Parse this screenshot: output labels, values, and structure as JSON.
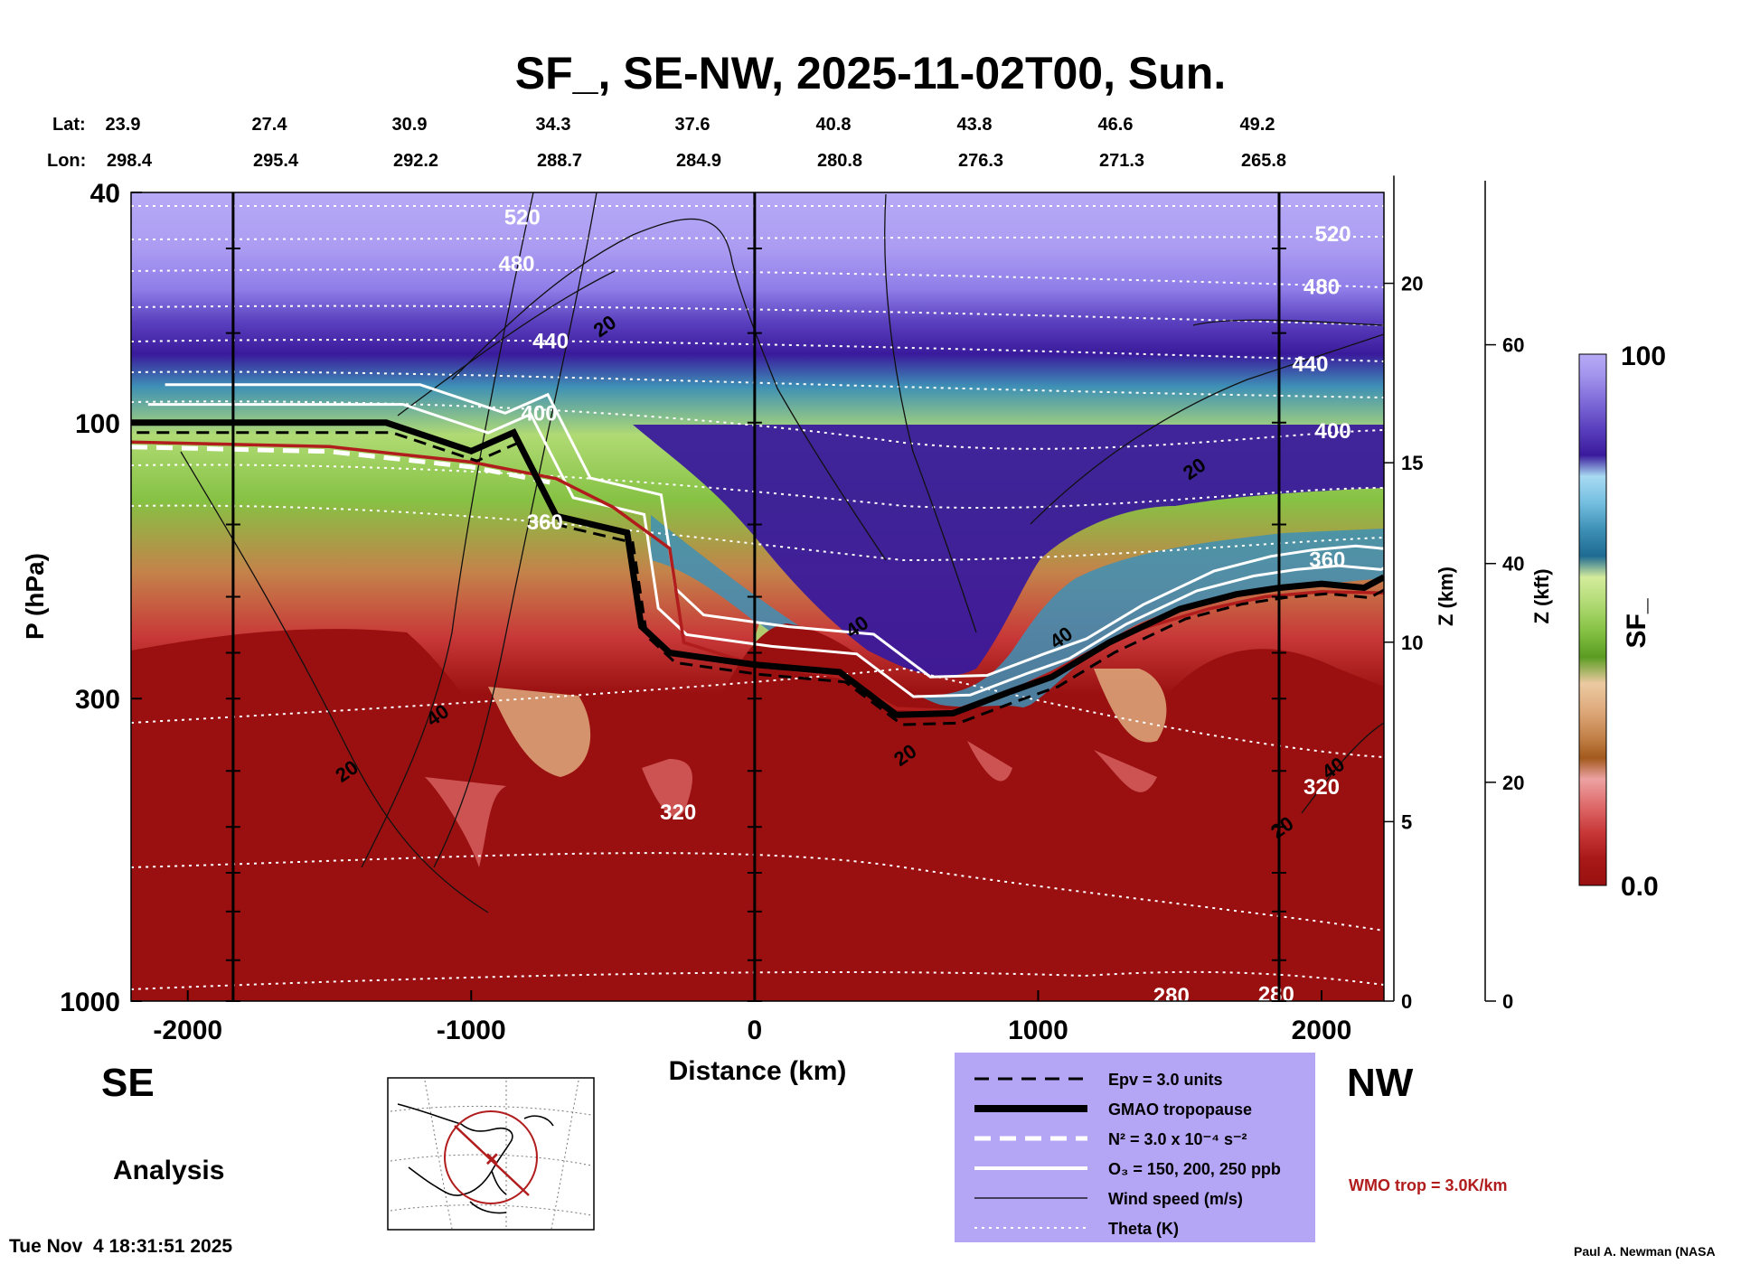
{
  "title": "SF_, SE-NW, 2025-11-02T00, Sun.",
  "lat_label": "Lat:",
  "lon_label": "Lon:",
  "lat_values": [
    "23.9",
    "27.4",
    "30.9",
    "34.3",
    "37.6",
    "40.8",
    "43.8",
    "46.6",
    "49.2"
  ],
  "lon_values": [
    "298.4",
    "295.4",
    "292.2",
    "288.7",
    "284.9",
    "280.8",
    "276.3",
    "271.3",
    "265.8"
  ],
  "left_direction": "SE",
  "right_direction": "NW",
  "analysis_label": "Analysis",
  "timestamp": "Tue Nov  4 18:31:51 2025",
  "credit": "Paul A. Newman (NASA",
  "wmo_note": "WMO trop = 3.0K/km",
  "legend": [
    {
      "label": "Epv = 3.0 units",
      "style": "dashed-black"
    },
    {
      "label": "GMAO tropopause",
      "style": "thick-black"
    },
    {
      "label": "N² = 3.0 x 10⁻⁴ s⁻²",
      "style": "dashed-white"
    },
    {
      "label": "O₃ = 150, 200, 250 ppb",
      "style": "solid-white"
    },
    {
      "label": "Wind speed (m/s)",
      "style": "thin-black"
    },
    {
      "label": "Theta (K)",
      "style": "dotted-white"
    }
  ],
  "colors": {
    "legend_bg": "#b4a6f4",
    "wmo": "#b11d1d",
    "lowSF": "#9a1010",
    "highSF": "#b7aaf6"
  },
  "chart_data": {
    "type": "heatmap",
    "title": "SF_, SE-NW, 2025-11-02T00, Sun.",
    "xlabel": "Distance (km)",
    "ylabel": "P (hPa)",
    "y2label": "Z (km)",
    "y3label": "Z (kft)",
    "colorbar_label": "SF_",
    "x_range": [
      -2200,
      2220
    ],
    "x_ticks": [
      -2000,
      -1000,
      0,
      1000,
      2000
    ],
    "p_range": [
      1000,
      40
    ],
    "p_ticks": [
      40,
      100,
      300,
      1000
    ],
    "z_km_ticks": [
      0,
      5,
      10,
      15,
      20
    ],
    "z_kft_ticks": [
      0,
      20,
      40,
      60
    ],
    "colorbar_range": [
      0.0,
      100
    ],
    "colorbar_tick_labels": [
      "0.0",
      "100"
    ],
    "colorbar_colors": [
      "#9a1010",
      "#a81818",
      "#c83838",
      "#de6a6a",
      "#eda2a2",
      "#a25a1c",
      "#c4824a",
      "#deaa7c",
      "#eccaa2",
      "#5a9c22",
      "#86c244",
      "#b0da74",
      "#d4ec9c",
      "#1e6a92",
      "#3e90b6",
      "#74bee0",
      "#a8daf2",
      "#3a1a9c",
      "#5a40be",
      "#7e6ad8",
      "#a294ec",
      "#b7aaf6"
    ],
    "theta_labels": [
      {
        "value": "520",
        "x_km": -820,
        "p": 44
      },
      {
        "value": "480",
        "x_km": -840,
        "p": 53
      },
      {
        "value": "440",
        "x_km": -720,
        "p": 72
      },
      {
        "value": "400",
        "x_km": -760,
        "p": 96
      },
      {
        "value": "360",
        "x_km": -740,
        "p": 148
      },
      {
        "value": "320",
        "x_km": -270,
        "p": 470
      },
      {
        "value": "280",
        "x_km": 1470,
        "p": 975
      },
      {
        "value": "520",
        "x_km": 2040,
        "p": 47
      },
      {
        "value": "480",
        "x_km": 2000,
        "p": 58
      },
      {
        "value": "440",
        "x_km": 1960,
        "p": 79
      },
      {
        "value": "400",
        "x_km": 2040,
        "p": 103
      },
      {
        "value": "360",
        "x_km": 2020,
        "p": 172
      },
      {
        "value": "320",
        "x_km": 2000,
        "p": 425
      },
      {
        "value": "280",
        "x_km": 1840,
        "p": 970
      }
    ],
    "wind_labels": [
      {
        "value": "20",
        "x_km": -530,
        "p": 68
      },
      {
        "value": "20",
        "x_km": 1550,
        "p": 120
      },
      {
        "value": "40",
        "x_km": 360,
        "p": 225
      },
      {
        "value": "40",
        "x_km": 1080,
        "p": 235
      },
      {
        "value": "40",
        "x_km": -1120,
        "p": 320
      },
      {
        "value": "20",
        "x_km": -1440,
        "p": 400
      },
      {
        "value": "20",
        "x_km": 530,
        "p": 375
      },
      {
        "value": "40",
        "x_km": 2040,
        "p": 395
      },
      {
        "value": "20",
        "x_km": 1860,
        "p": 500
      }
    ],
    "vertical_marker_lines_km": [
      -1840,
      0,
      1850
    ],
    "gmao_tropopause": [
      [
        -2200,
        100
      ],
      [
        -1700,
        100
      ],
      [
        -1300,
        100
      ],
      [
        -1000,
        112
      ],
      [
        -850,
        104
      ],
      [
        -700,
        145
      ],
      [
        -450,
        155
      ],
      [
        -400,
        225
      ],
      [
        -300,
        250
      ],
      [
        -100,
        258
      ],
      [
        0,
        262
      ],
      [
        300,
        270
      ],
      [
        500,
        320
      ],
      [
        700,
        318
      ],
      [
        900,
        292
      ],
      [
        1050,
        275
      ],
      [
        1250,
        240
      ],
      [
        1500,
        210
      ],
      [
        1700,
        198
      ],
      [
        1850,
        193
      ],
      [
        2000,
        190
      ],
      [
        2150,
        193
      ],
      [
        2220,
        185
      ]
    ],
    "wmo_tropopause": [
      [
        -2200,
        108
      ],
      [
        -1500,
        110
      ],
      [
        -1000,
        117
      ],
      [
        -700,
        125
      ],
      [
        -500,
        140
      ],
      [
        -300,
        165
      ],
      [
        -250,
        240
      ],
      [
        0,
        262
      ],
      [
        300,
        275
      ],
      [
        500,
        312
      ],
      [
        700,
        315
      ],
      [
        900,
        292
      ],
      [
        1050,
        270
      ],
      [
        1300,
        232
      ],
      [
        1600,
        210
      ],
      [
        1800,
        200
      ],
      [
        2000,
        196
      ],
      [
        2220,
        197
      ]
    ]
  }
}
